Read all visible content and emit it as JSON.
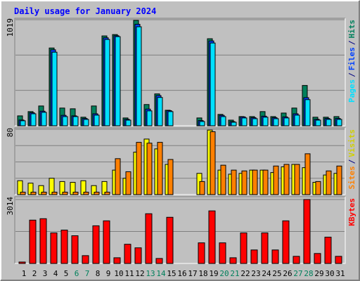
{
  "chart_data": [
    {
      "type": "bar",
      "title": "Daily usage for January 2024",
      "categories": [
        "1",
        "2",
        "3",
        "4",
        "5",
        "6",
        "7",
        "8",
        "9",
        "10",
        "11",
        "12",
        "13",
        "14",
        "15",
        "16",
        "17",
        "18",
        "19",
        "20",
        "21",
        "22",
        "23",
        "24",
        "25",
        "26",
        "27",
        "28",
        "29",
        "30",
        "31"
      ],
      "category_colors": [
        "#000000",
        "#000000",
        "#000000",
        "#000000",
        "#000000",
        "#00805c",
        "#00805c",
        "#000000",
        "#000000",
        "#000000",
        "#000000",
        "#000000",
        "#00805c",
        "#00805c",
        "#000000",
        "#000000",
        "#000000",
        "#000000",
        "#000000",
        "#00805c",
        "#00805c",
        "#000000",
        "#000000",
        "#000000",
        "#000000",
        "#000000",
        "#00805c",
        "#00805c",
        "#000000",
        "#000000",
        "#000000"
      ],
      "legend_separator": "/",
      "ylim": [
        0,
        1019
      ],
      "yticks": [
        1019
      ],
      "grid": [
        340,
        679
      ],
      "series": [
        {
          "name": "Hits",
          "color": "#00805c",
          "values": [
            95,
            136,
            190,
            747,
            170,
            163,
            82,
            190,
            863,
            876,
            75,
            1012,
            204,
            306,
            149,
            0,
            0,
            75,
            836,
            109,
            54,
            88,
            88,
            136,
            88,
            122,
            170,
            387,
            82,
            82,
            88
          ]
        },
        {
          "name": "Files",
          "color": "#0040ff",
          "values": [
            55,
            125,
            140,
            730,
            100,
            95,
            70,
            115,
            845,
            865,
            62,
            975,
            160,
            290,
            145,
            0,
            0,
            50,
            815,
            100,
            40,
            85,
            78,
            92,
            78,
            85,
            115,
            270,
            62,
            70,
            70
          ]
        },
        {
          "name": "Pages",
          "color": "#00e0ff",
          "values": [
            48,
            115,
            129,
            707,
            88,
            88,
            61,
            102,
            829,
            856,
            54,
            951,
            143,
            272,
            136,
            0,
            0,
            41,
            795,
            88,
            34,
            75,
            68,
            82,
            68,
            75,
            102,
            251,
            54,
            61,
            61
          ]
        }
      ]
    },
    {
      "type": "bar",
      "ylim": [
        0,
        80
      ],
      "yticks": [
        80
      ],
      "grid": [
        20,
        40,
        60
      ],
      "series": [
        {
          "name": "Visits",
          "color": "#ffff00",
          "values": [
            17,
            14,
            11,
            20,
            16,
            15,
            17,
            11,
            16,
            30,
            20,
            52,
            68,
            56,
            37,
            0,
            0,
            26,
            79,
            30,
            25,
            26,
            30,
            30,
            27,
            34,
            37,
            33,
            15,
            24,
            26
          ]
        },
        {
          "name": "Sites",
          "color": "#ff8000",
          "values": [
            3,
            3,
            3,
            3,
            3,
            3,
            3,
            3,
            3,
            44,
            28,
            64,
            63,
            64,
            43,
            0,
            0,
            16,
            77,
            36,
            30,
            29,
            30,
            30,
            35,
            37,
            37,
            50,
            16,
            29,
            35
          ]
        }
      ]
    },
    {
      "type": "bar",
      "ylim": [
        0,
        3014
      ],
      "yticks": [
        3014
      ],
      "grid": [
        1507
      ],
      "series": [
        {
          "name": "KBytes",
          "color": "#ff0000",
          "values": [
            67,
            2043,
            2110,
            1440,
            1574,
            1306,
            368,
            1775,
            2009,
            268,
            904,
            737,
            2344,
            234,
            2177,
            0,
            0,
            971,
            2478,
            971,
            268,
            1440,
            636,
            1440,
            636,
            2009,
            335,
            3014,
            469,
            1239,
            335
          ]
        }
      ]
    }
  ]
}
